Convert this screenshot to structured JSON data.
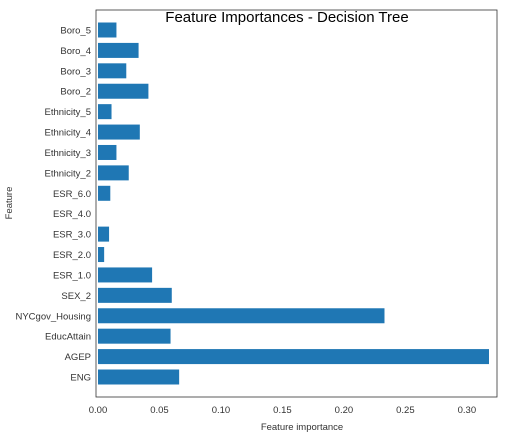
{
  "chart_data": {
    "type": "bar",
    "orientation": "horizontal",
    "title": "Feature Importances - Decision Tree",
    "xlabel": "Feature importance",
    "ylabel": "Feature",
    "xlim": [
      0,
      0.32
    ],
    "xticks": [
      "0.00",
      "0.05",
      "0.10",
      "0.15",
      "0.20",
      "0.25",
      "0.30"
    ],
    "xtick_values": [
      0,
      0.05,
      0.1,
      0.15,
      0.2,
      0.25,
      0.3
    ],
    "grid": false,
    "bar_color": "#1f77b4",
    "categories": [
      "Boro_5",
      "Boro_4",
      "Boro_3",
      "Boro_2",
      "Ethnicity_5",
      "Ethnicity_4",
      "Ethnicity_3",
      "Ethnicity_2",
      "ESR_6.0",
      "ESR_4.0",
      "ESR_3.0",
      "ESR_2.0",
      "ESR_1.0",
      "SEX_2",
      "NYCgov_Housing",
      "EducAttain",
      "AGEP",
      "ENG"
    ],
    "values": [
      0.015,
      0.033,
      0.023,
      0.041,
      0.011,
      0.034,
      0.015,
      0.025,
      0.01,
      0.0,
      0.009,
      0.005,
      0.044,
      0.06,
      0.233,
      0.059,
      0.318,
      0.066
    ]
  }
}
